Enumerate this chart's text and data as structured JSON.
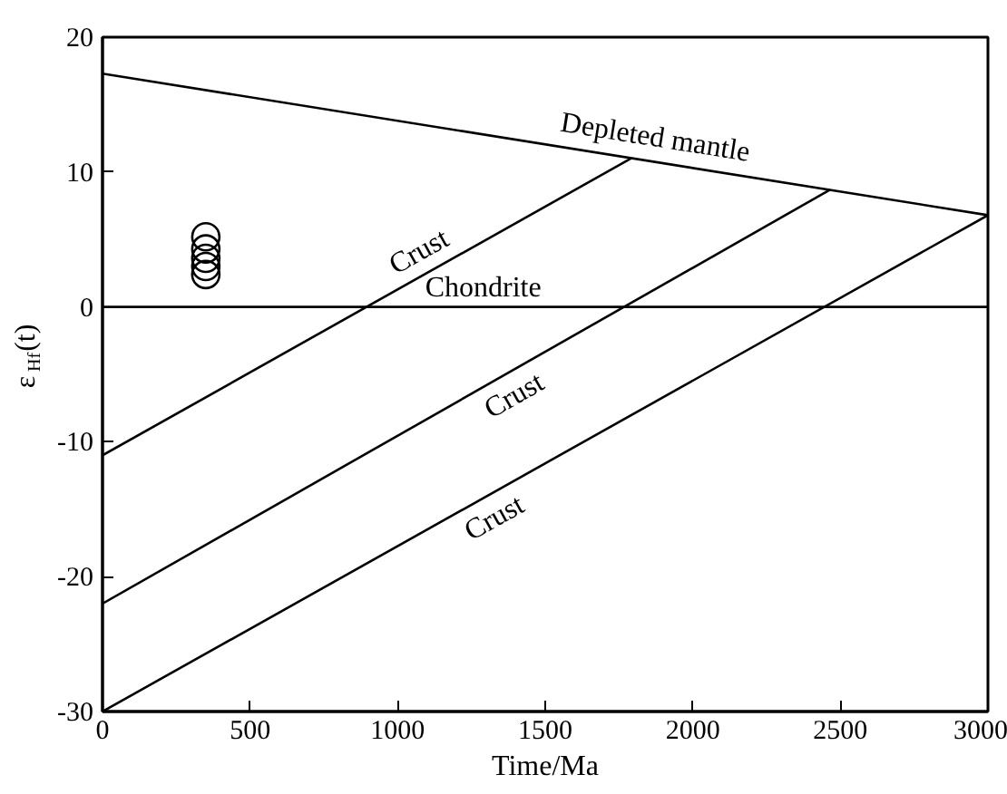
{
  "chart_data": {
    "type": "line",
    "xlabel": "Time/Ma",
    "ylabel": "ε$_{Hf}$(t)",
    "xlim": [
      0,
      3000
    ],
    "ylim": [
      -30,
      20
    ],
    "xticks": [
      0,
      500,
      1000,
      1500,
      2000,
      2500,
      3000
    ],
    "yticks": [
      -30,
      -20,
      -10,
      0,
      10,
      20
    ],
    "grid": false,
    "line_style": "solid",
    "series": [
      {
        "name": "Depleted mantle",
        "color": "#000000",
        "x": [
          0,
          3000
        ],
        "values": [
          17.3,
          6.8
        ]
      },
      {
        "name": "Crust",
        "color": "#000000",
        "x": [
          0,
          1790
        ],
        "values": [
          -11,
          11
        ]
      },
      {
        "name": "Crust",
        "color": "#000000",
        "x": [
          0,
          2466
        ],
        "values": [
          -22,
          8.7
        ]
      },
      {
        "name": "Crust",
        "color": "#000000",
        "x": [
          0,
          3000
        ],
        "values": [
          -30,
          6.8
        ]
      },
      {
        "type": "scatter",
        "marker": "circle",
        "color": "#000000",
        "x": [
          350,
          350,
          350,
          350,
          350
        ],
        "values": [
          5.2,
          4.3,
          3.6,
          3.0,
          2.4
        ]
      }
    ],
    "ref_lines": [
      {
        "axis": "y",
        "value": 0,
        "label": "Chondrite",
        "color": "#000000",
        "line_style": "solid"
      }
    ]
  }
}
